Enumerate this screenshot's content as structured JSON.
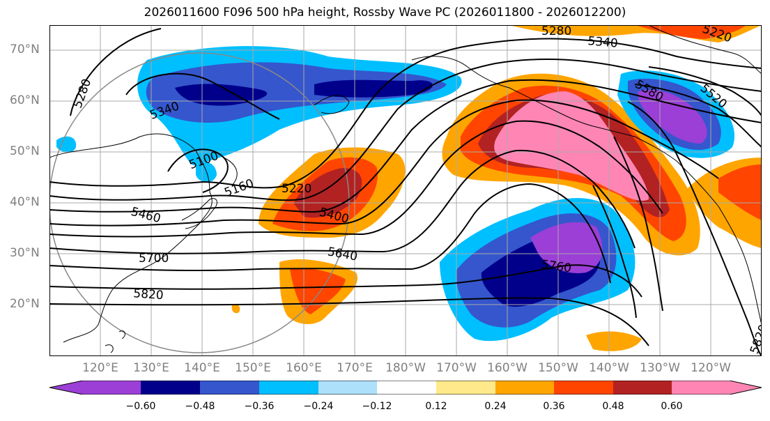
{
  "title": "2026011600 F096 500 hPa height, Rossby Wave PC (2026011800 - 2026012200)",
  "map": {
    "lat_labels": [
      "70°N",
      "60°N",
      "50°N",
      "40°N",
      "30°N",
      "20°N"
    ],
    "lon_labels": [
      "120°E",
      "130°E",
      "140°E",
      "150°E",
      "160°E",
      "170°E",
      "180°W",
      "170°W",
      "160°W",
      "150°W",
      "140°W",
      "130°W",
      "120°W"
    ],
    "contour_labels": [
      "5280",
      "5340",
      "5220",
      "5280",
      "5340",
      "5100",
      "5160",
      "5220",
      "5460",
      "5400",
      "5700",
      "5640",
      "5760",
      "5820",
      "5820",
      "5580",
      "5520"
    ],
    "colors": {
      "purple": "#9b3fd6",
      "navy": "#00008b",
      "royal": "#3556cc",
      "sky": "#00bfff",
      "pale": "#ade0fb",
      "white": "#ffffff",
      "yellow": "#ffe98a",
      "orange": "#ffa500",
      "red_orange": "#ff4500",
      "dark_red": "#b22222",
      "pink": "#ff86b4"
    }
  },
  "colorbar": {
    "labels": [
      "−0.60",
      "−0.48",
      "−0.36",
      "−0.24",
      "−0.12",
      "0.12",
      "0.24",
      "0.36",
      "0.48",
      "0.60"
    ]
  }
}
